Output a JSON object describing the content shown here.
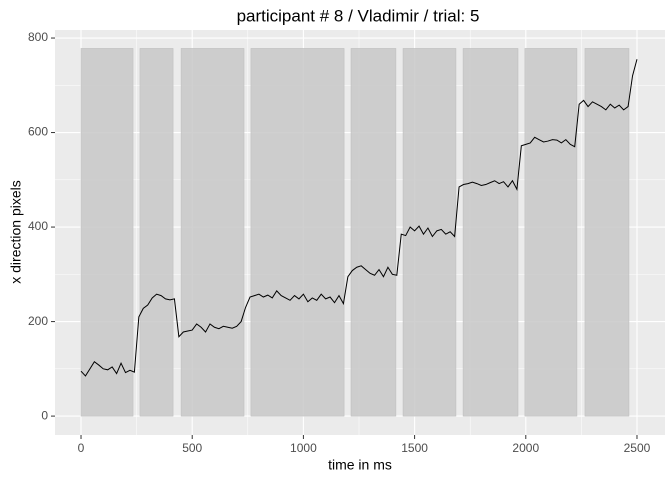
{
  "chart_data": {
    "type": "line",
    "title": "participant # 8  /  Vladimir / trial: 5",
    "x_label": "time in ms",
    "y_label": "x direction pixels",
    "xlim": [
      -117,
      2626
    ],
    "ylim": [
      -40,
      817
    ],
    "xticks": [
      0,
      500,
      1000,
      1500,
      2000,
      2500
    ],
    "yticks": [
      0,
      200,
      400,
      600,
      800
    ],
    "grid": true,
    "line_color": "#000000",
    "rect_color": "#c8c8c8",
    "rects": [
      {
        "xmin": 0,
        "xmax": 234,
        "ymin": 0,
        "ymax": 778
      },
      {
        "xmin": 265,
        "xmax": 414,
        "ymin": 0,
        "ymax": 778
      },
      {
        "xmin": 450,
        "xmax": 733,
        "ymin": 0,
        "ymax": 778
      },
      {
        "xmin": 764,
        "xmax": 1183,
        "ymin": 0,
        "ymax": 778
      },
      {
        "xmin": 1214,
        "xmax": 1416,
        "ymin": 0,
        "ymax": 778
      },
      {
        "xmin": 1448,
        "xmax": 1686,
        "ymin": 0,
        "ymax": 778
      },
      {
        "xmin": 1718,
        "xmax": 1965,
        "ymin": 0,
        "ymax": 778
      },
      {
        "xmin": 1996,
        "xmax": 2230,
        "ymin": 0,
        "ymax": 778
      },
      {
        "xmin": 2266,
        "xmax": 2464,
        "ymin": 0,
        "ymax": 778
      }
    ],
    "x": [
      0,
      20,
      40,
      60,
      80,
      100,
      120,
      140,
      160,
      180,
      200,
      220,
      240,
      260,
      280,
      300,
      320,
      340,
      360,
      380,
      400,
      420,
      440,
      460,
      480,
      500,
      520,
      540,
      560,
      580,
      600,
      620,
      640,
      660,
      680,
      700,
      720,
      740,
      760,
      780,
      800,
      820,
      840,
      860,
      880,
      900,
      920,
      940,
      960,
      980,
      1000,
      1020,
      1040,
      1060,
      1080,
      1100,
      1120,
      1140,
      1160,
      1180,
      1200,
      1220,
      1240,
      1260,
      1280,
      1300,
      1320,
      1340,
      1360,
      1380,
      1400,
      1420,
      1440,
      1460,
      1480,
      1500,
      1520,
      1540,
      1560,
      1580,
      1600,
      1620,
      1640,
      1660,
      1680,
      1700,
      1720,
      1740,
      1760,
      1780,
      1800,
      1820,
      1840,
      1860,
      1880,
      1900,
      1920,
      1940,
      1960,
      1980,
      2000,
      2020,
      2040,
      2060,
      2080,
      2100,
      2120,
      2140,
      2160,
      2180,
      2200,
      2220,
      2240,
      2260,
      2280,
      2300,
      2320,
      2340,
      2360,
      2380,
      2400,
      2420,
      2440,
      2460,
      2480,
      2500
    ],
    "values": [
      95,
      85,
      100,
      115,
      108,
      100,
      98,
      104,
      90,
      112,
      92,
      97,
      93,
      210,
      228,
      235,
      250,
      258,
      255,
      248,
      246,
      248,
      168,
      178,
      180,
      182,
      195,
      188,
      178,
      195,
      188,
      185,
      190,
      188,
      186,
      190,
      200,
      230,
      252,
      255,
      258,
      252,
      256,
      250,
      265,
      255,
      250,
      245,
      255,
      248,
      258,
      242,
      250,
      245,
      258,
      248,
      252,
      240,
      255,
      238,
      295,
      308,
      315,
      318,
      310,
      302,
      298,
      310,
      295,
      315,
      300,
      298,
      385,
      382,
      400,
      392,
      402,
      385,
      398,
      380,
      392,
      395,
      385,
      390,
      380,
      485,
      490,
      492,
      495,
      492,
      488,
      490,
      494,
      498,
      492,
      496,
      485,
      498,
      480,
      572,
      575,
      578,
      590,
      585,
      580,
      582,
      585,
      584,
      578,
      585,
      575,
      570,
      660,
      668,
      655,
      665,
      660,
      655,
      648,
      660,
      652,
      658,
      648,
      655,
      720,
      755
    ]
  }
}
